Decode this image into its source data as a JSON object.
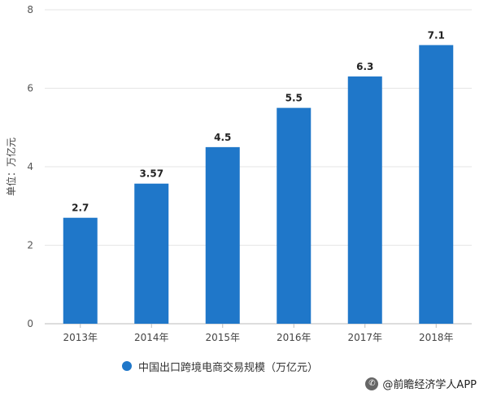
{
  "chart_data": {
    "type": "bar",
    "categories": [
      "2013年",
      "2014年",
      "2015年",
      "2016年",
      "2017年",
      "2018年"
    ],
    "series": [
      {
        "name": "中国出口跨境电商交易规模（万亿元）",
        "values": [
          2.7,
          3.57,
          4.5,
          5.5,
          6.3,
          7.1
        ]
      }
    ],
    "data_labels": [
      "2.7",
      "3.57",
      "4.5",
      "5.5",
      "6.3",
      "7.1"
    ],
    "ylabel": "单位：万亿元",
    "ylim": [
      0,
      8
    ],
    "yticks": [
      0,
      2,
      4,
      6,
      8
    ],
    "grid": true,
    "legend_position": "bottom",
    "bar_color": "#1F77C9"
  },
  "source": {
    "icon": "chat-bubble-icon",
    "text": "@前瞻经济学人APP"
  }
}
